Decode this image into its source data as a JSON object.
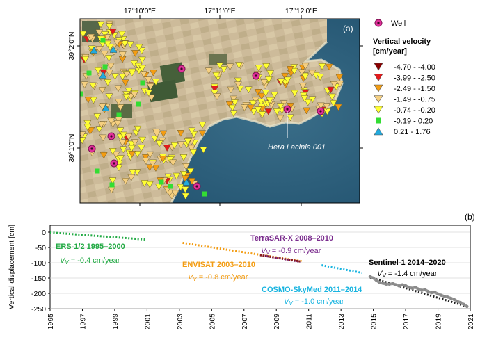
{
  "panel_a": {
    "label": "(a)",
    "lon_ticks": [
      "17°10'0\"E",
      "17°11'0\"E",
      "17°12'0\"E"
    ],
    "lat_ticks": [
      "39°2'0\"N",
      "39°1'0\"N"
    ],
    "well_label": "Well",
    "legend_title_line1": "Vertical velocity",
    "legend_title_line2": "[cm/year]",
    "legend": [
      {
        "label": "-4.70 - -4.00",
        "color": "#8b0000",
        "shape": "triangle-down"
      },
      {
        "label": "-3.99 - -2.50",
        "color": "#e31a1c",
        "shape": "triangle-down"
      },
      {
        "label": "-2.49 - -1.50",
        "color": "#f39c12",
        "shape": "triangle-down"
      },
      {
        "label": "-1.49 - -0.75",
        "color": "#f5cf80",
        "shape": "triangle-down"
      },
      {
        "label": "-0.74 - -0.20",
        "color": "#ffff33",
        "shape": "triangle-down"
      },
      {
        "label": "-0.19 - 0.20",
        "color": "#33dd33",
        "shape": "square"
      },
      {
        "label": "0.21 - 1.76",
        "color": "#22aadd",
        "shape": "triangle-up"
      }
    ],
    "well_color": "#e0309a",
    "annotation": "Hera Lacinia 001"
  },
  "panel_b": {
    "label": "(b)",
    "chart_data": {
      "type": "scatter",
      "ylabel": "Vertical displacement [cm]",
      "xlim": [
        1995,
        2021
      ],
      "ylim": [
        -250,
        0
      ],
      "x_ticks": [
        1995,
        1997,
        1999,
        2001,
        2003,
        2005,
        2007,
        2009,
        2011,
        2013,
        2015,
        2017,
        2019,
        2021
      ],
      "y_ticks": [
        0,
        -50,
        -100,
        -150,
        -200,
        -250
      ],
      "series": [
        {
          "name": "ERS-1/2 1995–2000",
          "rate": "-0.4 cm/year",
          "color": "#22aa44",
          "style": "dotted",
          "x": [
            1995.0,
            2000.9
          ],
          "y": [
            -1,
            -24
          ]
        },
        {
          "name": "ENVISAT 2003–2010",
          "rate": "-0.8 cm/year",
          "color": "#f39c12",
          "style": "dotted",
          "x": [
            2003.2,
            2010.6
          ],
          "y": [
            -35,
            -95
          ]
        },
        {
          "name": "TerraSAR-X 2008–2010",
          "rate": "-0.9 cm/year",
          "color": "#7b2d8e",
          "style": "dotted",
          "x": [
            2008.0,
            2010.5
          ],
          "y": [
            -75,
            -97
          ]
        },
        {
          "name": "COSMO-SkyMed 2011–2014",
          "rate": "-1.0 cm/year",
          "color": "#18b4e0",
          "style": "dotted",
          "x": [
            2011.8,
            2014.3
          ],
          "y": [
            -108,
            -133
          ]
        },
        {
          "name": "Sentinel-1 2014–2020",
          "rate": "-1.4 cm/year",
          "color": "#222222",
          "style": "dotted",
          "x": [
            2014.8,
            2020.8
          ],
          "y": [
            -148,
            -243
          ]
        }
      ],
      "sentinel_points": {
        "x": [
          2014.8,
          2015.0,
          2015.2,
          2015.4,
          2015.6,
          2015.8,
          2016.0,
          2016.2,
          2016.4,
          2016.6,
          2016.8,
          2017.0,
          2017.2,
          2017.4,
          2017.6,
          2017.8,
          2018.0,
          2018.2,
          2018.4,
          2018.6,
          2018.8,
          2019.0,
          2019.2,
          2019.4,
          2019.6,
          2019.8,
          2020.0,
          2020.2,
          2020.4,
          2020.6,
          2020.8
        ],
        "y": [
          -145,
          -150,
          -158,
          -165,
          -167,
          -170,
          -170,
          -168,
          -172,
          -176,
          -172,
          -175,
          -180,
          -183,
          -180,
          -186,
          -190,
          -188,
          -194,
          -198,
          -196,
          -202,
          -206,
          -210,
          -212,
          -216,
          -220,
          -226,
          -230,
          -236,
          -243
        ]
      }
    }
  }
}
